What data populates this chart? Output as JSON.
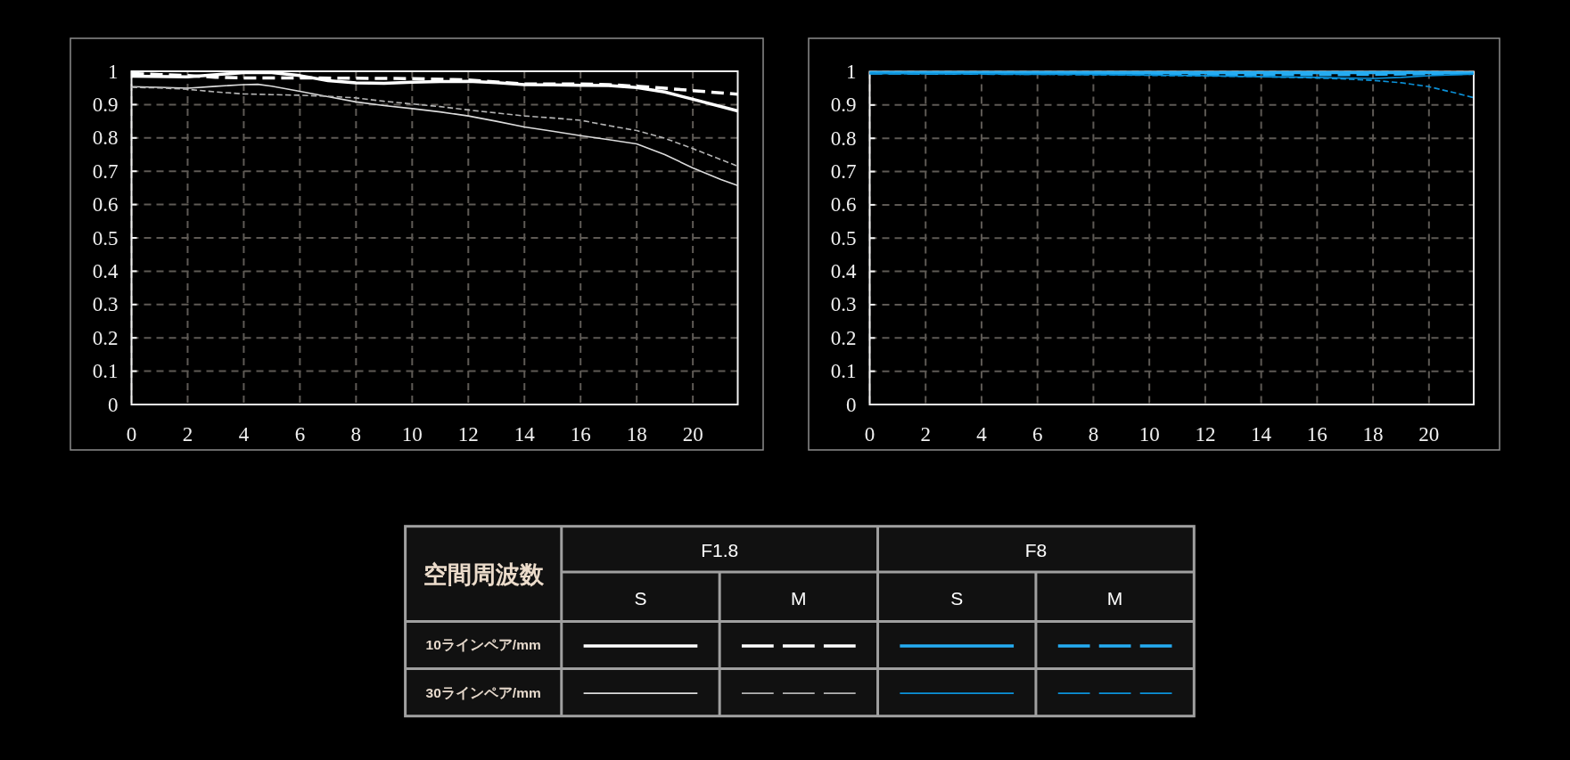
{
  "chart_data": [
    {
      "type": "line",
      "xlim": [
        0,
        21.6
      ],
      "xticks": [
        0,
        2,
        4,
        6,
        8,
        10,
        12,
        14,
        16,
        18,
        20
      ],
      "ylim": [
        0,
        1
      ],
      "yticks": [
        0,
        0.1,
        0.2,
        0.3,
        0.4,
        0.5,
        0.6,
        0.7,
        0.8,
        0.9,
        1
      ],
      "grid": true,
      "series": [
        {
          "color": "#ffffff",
          "line_style": "solid",
          "x": [
            0,
            2,
            4,
            5,
            6,
            7,
            8,
            9,
            10,
            11,
            12,
            13,
            14,
            15,
            16,
            17,
            18,
            19,
            20,
            21.6
          ],
          "values": [
            0.985,
            0.983,
            0.996,
            0.996,
            0.987,
            0.972,
            0.965,
            0.964,
            0.967,
            0.969,
            0.97,
            0.966,
            0.96,
            0.959,
            0.958,
            0.957,
            0.951,
            0.938,
            0.916,
            0.881
          ]
        },
        {
          "color": "#ffffff",
          "line_style": "dashed",
          "x": [
            0,
            1,
            2,
            3,
            4,
            6,
            8,
            10,
            12,
            13,
            14,
            16,
            17,
            18,
            19,
            20,
            21.6
          ],
          "values": [
            0.993,
            0.99,
            0.987,
            0.982,
            0.98,
            0.98,
            0.979,
            0.978,
            0.974,
            0.968,
            0.962,
            0.962,
            0.96,
            0.955,
            0.949,
            0.942,
            0.931
          ]
        },
        {
          "color": "#dcdcdc",
          "line_style": "solid",
          "x": [
            0,
            1,
            2,
            3,
            4,
            4.5,
            5,
            6,
            7,
            8,
            9,
            10,
            11,
            12,
            13,
            14,
            15,
            16,
            17,
            18,
            19,
            20,
            21,
            21.6
          ],
          "values": [
            0.954,
            0.952,
            0.949,
            0.955,
            0.96,
            0.961,
            0.955,
            0.94,
            0.924,
            0.908,
            0.897,
            0.888,
            0.878,
            0.866,
            0.85,
            0.833,
            0.82,
            0.807,
            0.795,
            0.782,
            0.75,
            0.71,
            0.675,
            0.657
          ]
        },
        {
          "color": "#b4b4b4",
          "line_style": "dashed",
          "x": [
            0,
            1,
            2,
            3,
            4,
            5,
            6,
            7,
            8,
            9,
            10,
            11,
            12,
            13,
            14,
            15,
            16,
            17,
            18,
            19,
            20,
            21,
            21.6
          ],
          "values": [
            0.952,
            0.95,
            0.946,
            0.938,
            0.932,
            0.93,
            0.928,
            0.925,
            0.92,
            0.91,
            0.902,
            0.894,
            0.884,
            0.875,
            0.866,
            0.86,
            0.853,
            0.837,
            0.822,
            0.799,
            0.768,
            0.735,
            0.715
          ]
        }
      ]
    },
    {
      "type": "line",
      "xlim": [
        0,
        21.6
      ],
      "xticks": [
        0,
        2,
        4,
        6,
        8,
        10,
        12,
        14,
        16,
        18,
        20
      ],
      "ylim": [
        0,
        1
      ],
      "yticks": [
        0,
        0.1,
        0.2,
        0.3,
        0.4,
        0.5,
        0.6,
        0.7,
        0.8,
        0.9,
        1
      ],
      "grid": true,
      "series": [
        {
          "color": "#25acf2",
          "line_style": "solid",
          "x": [
            0,
            4,
            8,
            12,
            16,
            20,
            21.6
          ],
          "values": [
            0.997,
            0.997,
            0.997,
            0.997,
            0.997,
            0.997,
            0.996
          ]
        },
        {
          "color": "#25acf2",
          "line_style": "dashed",
          "x": [
            0,
            4,
            8,
            10,
            12,
            14,
            16,
            18,
            20,
            21.6
          ],
          "values": [
            0.996,
            0.995,
            0.994,
            0.993,
            0.992,
            0.991,
            0.991,
            0.992,
            0.994,
            0.995
          ]
        },
        {
          "color": "#0b92da",
          "line_style": "solid",
          "x": [
            0,
            4,
            8,
            10,
            12,
            14,
            16,
            17,
            18,
            19,
            20,
            21.6
          ],
          "values": [
            0.995,
            0.994,
            0.992,
            0.99,
            0.988,
            0.985,
            0.983,
            0.981,
            0.98,
            0.983,
            0.988,
            0.993
          ]
        },
        {
          "color": "#0b92da",
          "line_style": "dashed",
          "x": [
            0,
            2,
            4,
            6,
            8,
            10,
            12,
            14,
            16,
            17,
            18,
            19,
            20,
            21,
            21.6
          ],
          "values": [
            0.995,
            0.994,
            0.993,
            0.992,
            0.991,
            0.989,
            0.987,
            0.985,
            0.981,
            0.978,
            0.974,
            0.967,
            0.955,
            0.935,
            0.922
          ]
        }
      ]
    },
    {
      "type": "other",
      "title": "空間周波数",
      "annotations": [
        "F1.8",
        "F8"
      ],
      "categories": [
        "S",
        "M",
        "S",
        "M"
      ],
      "y_categories": [
        "10ラインペア/mm",
        "30ラインペア/mm"
      ]
    }
  ]
}
